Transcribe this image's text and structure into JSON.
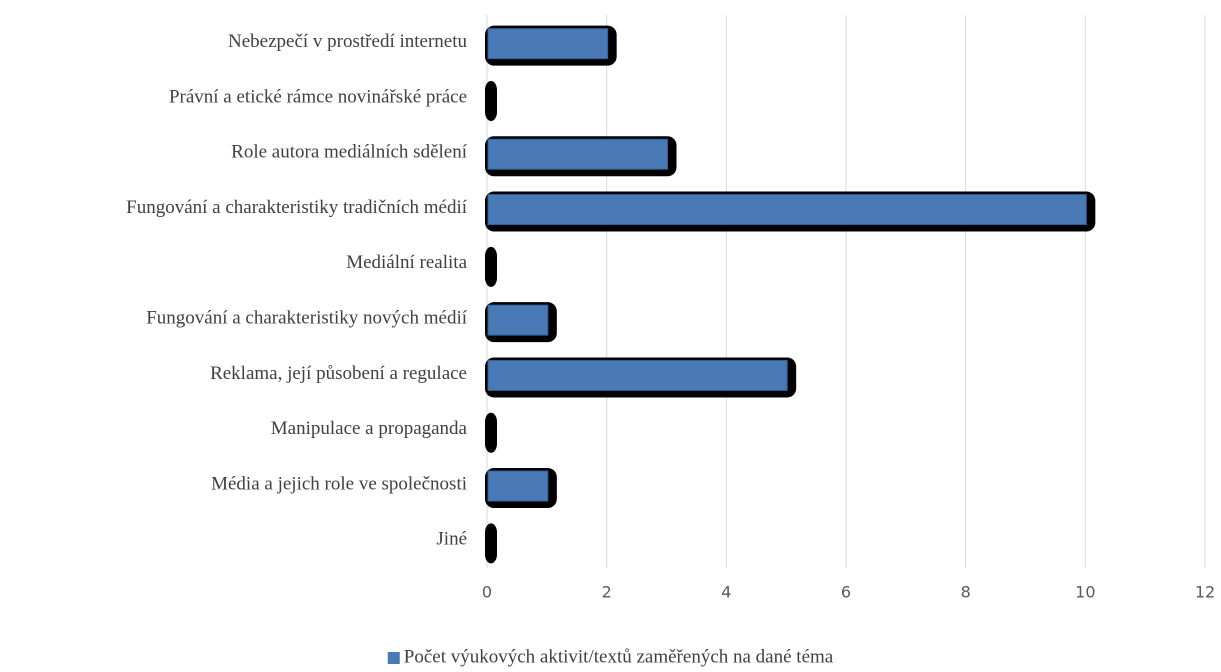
{
  "chart_data": {
    "type": "barh",
    "categories": [
      "Nebezpečí v prostředí internetu",
      "Právní a etické rámce novinářské práce",
      "Role autora mediálních sdělení",
      "Fungování a charakteristiky tradičních médií",
      "Mediální realita",
      "Fungování a charakteristiky nových médií",
      "Reklama, její působení a regulace",
      "Manipulace a propaganda",
      "Média a jejich role ve společnosti",
      "Jiné"
    ],
    "series": [
      {
        "name": "Počet výukových aktivit/textů zaměřených na dané téma",
        "color": "#4a7ab5",
        "values": [
          2,
          0,
          3,
          10,
          0,
          1,
          5,
          0,
          1,
          0
        ]
      }
    ],
    "xlim": [
      0,
      12
    ],
    "xticks": [
      0,
      2,
      4,
      6,
      8,
      10,
      12
    ],
    "grid": true,
    "legend": "bottom"
  }
}
